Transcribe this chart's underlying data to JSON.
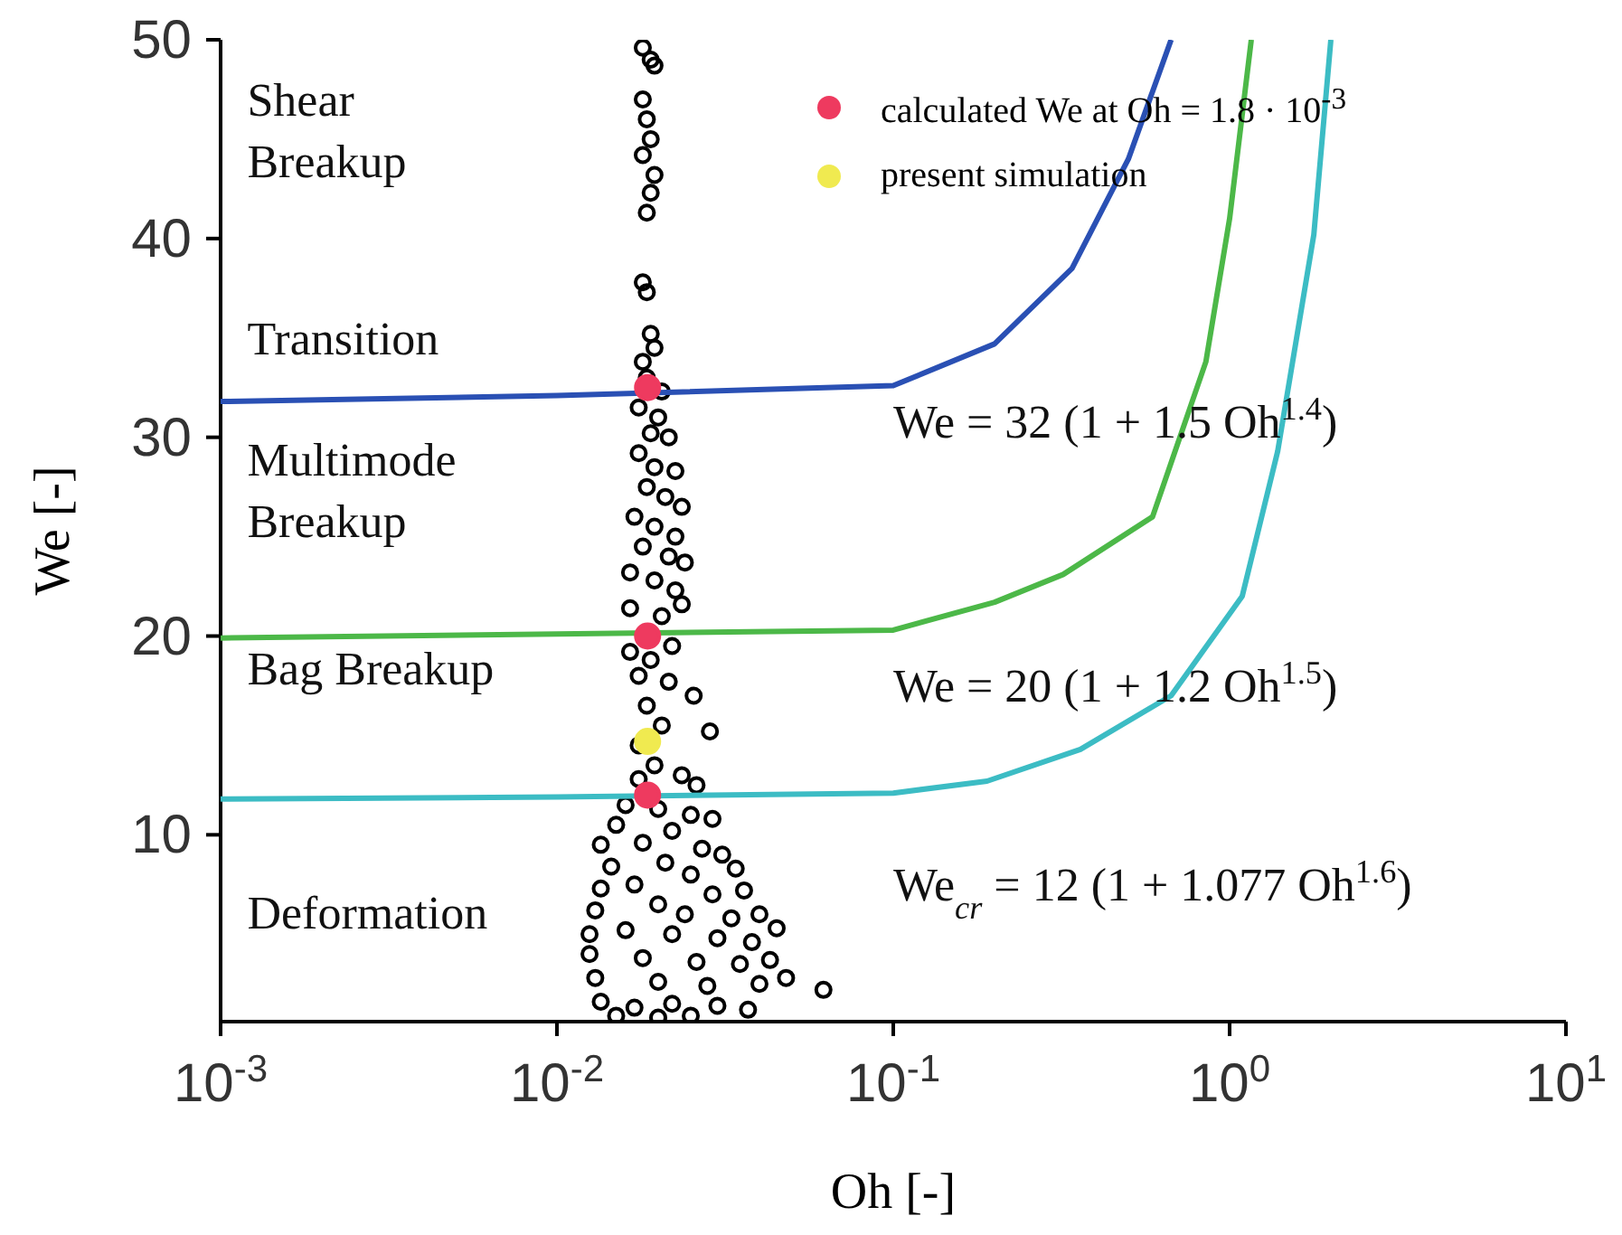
{
  "chart_data": {
    "type": "scatter",
    "xlabel": "Oh [-]",
    "ylabel": "We [-]",
    "log": "x",
    "legend": "top right",
    "marker": "circle",
    "xlim": [
      0.001,
      10
    ],
    "xticks": [
      {
        "value": 0.001,
        "label": "10$^{-3}$"
      },
      {
        "value": 0.01,
        "label": "10$^{-2}$"
      },
      {
        "value": 0.1,
        "label": "10$^{-1}$"
      },
      {
        "value": 1,
        "label": "10$^{0}$"
      },
      {
        "value": 10,
        "label": "10$^{1}$"
      }
    ],
    "ylim": [
      0.6,
      50
    ],
    "yticks": [
      10,
      20,
      30,
      40,
      50
    ],
    "series": [
      {
        "color": "#000000",
        "x": [
          0.018,
          0.019,
          0.0195,
          0.018,
          0.0185,
          0.019,
          0.018,
          0.0195,
          0.019,
          0.0185,
          0.018,
          0.0185,
          0.019,
          0.0195,
          0.018,
          0.0185,
          0.0205,
          0.0175,
          0.02,
          0.019,
          0.0215,
          0.0175,
          0.0195,
          0.0225,
          0.0185,
          0.021,
          0.0235,
          0.017,
          0.0195,
          0.0225,
          0.018,
          0.0215,
          0.024,
          0.0165,
          0.0195,
          0.0225,
          0.0165,
          0.0205,
          0.0235,
          0.0165,
          0.019,
          0.022,
          0.0175,
          0.0215,
          0.0255,
          0.0185,
          0.0205,
          0.0175,
          0.0285,
          0.0195,
          0.0235,
          0.0175,
          0.026,
          0.016,
          0.02,
          0.025,
          0.029,
          0.015,
          0.022,
          0.0135,
          0.018,
          0.027,
          0.031,
          0.0145,
          0.021,
          0.025,
          0.034,
          0.0135,
          0.017,
          0.029,
          0.036,
          0.013,
          0.02,
          0.024,
          0.033,
          0.04,
          0.0125,
          0.016,
          0.022,
          0.03,
          0.038,
          0.045,
          0.0125,
          0.018,
          0.026,
          0.035,
          0.043,
          0.013,
          0.02,
          0.028,
          0.04,
          0.048,
          0.062,
          0.0135,
          0.017,
          0.022,
          0.03,
          0.037,
          0.015,
          0.02,
          0.025
        ],
        "values": [
          49.6,
          49,
          48.7,
          47,
          46,
          45,
          44.2,
          43.2,
          42.3,
          41.3,
          37.8,
          37.3,
          35.2,
          34.5,
          33.8,
          33,
          32.3,
          31.5,
          31,
          30.2,
          30,
          29.2,
          28.5,
          28.3,
          27.5,
          27,
          26.5,
          26,
          25.5,
          25,
          24.5,
          24,
          23.7,
          23.2,
          22.8,
          22.3,
          21.4,
          21,
          21.6,
          19.2,
          18.8,
          19.5,
          18,
          17.7,
          17,
          16.5,
          15.5,
          14.5,
          15.2,
          13.5,
          13,
          12.8,
          12.5,
          11.5,
          11.3,
          11,
          10.8,
          10.5,
          10.2,
          9.5,
          9.6,
          9.3,
          9,
          8.4,
          8.6,
          8,
          8.3,
          7.3,
          7.5,
          7,
          7.2,
          6.2,
          6.5,
          6,
          5.8,
          6,
          5,
          5.2,
          5,
          4.8,
          4.6,
          5.3,
          4,
          3.8,
          3.6,
          3.5,
          3.7,
          2.8,
          2.6,
          2.4,
          2.5,
          2.8,
          2.2,
          1.6,
          1.3,
          1.5,
          1.4,
          1.2,
          0.9,
          0.8,
          0.9
        ]
      },
      {
        "type": "line",
        "marker": "none",
        "color": "#2a50b4",
        "x": [
          0.001,
          0.01,
          0.1,
          0.2,
          0.34,
          0.5,
          0.67
        ],
        "values": [
          31.8,
          32.1,
          32.6,
          34.7,
          38.5,
          44,
          50
        ]
      },
      {
        "type": "line",
        "marker": "none",
        "color": "#4cb848",
        "x": [
          0.001,
          0.01,
          0.1,
          0.2,
          0.32,
          0.59,
          0.85,
          1,
          1.16
        ],
        "values": [
          19.9,
          20.1,
          20.3,
          21.7,
          23.1,
          26,
          33.8,
          41,
          50
        ]
      },
      {
        "type": "line",
        "marker": "none",
        "color": "#3cbcc4",
        "x": [
          0.001,
          0.01,
          0.1,
          0.19,
          0.36,
          0.67,
          1.09,
          1.39,
          1.78,
          2
        ],
        "values": [
          11.8,
          11.9,
          12.1,
          12.7,
          14.3,
          17,
          22,
          29.3,
          40.2,
          50
        ]
      },
      {
        "type": "scatter",
        "name": "calculated We at Oh = 1.8 · 10$^{-3}$",
        "color": "#ee3a5f",
        "x": [
          0.0186,
          0.0186,
          0.0186
        ],
        "values": [
          32.5,
          20,
          12
        ]
      },
      {
        "type": "scatter",
        "name": "present simulation",
        "color": "#f0ea50",
        "x": [
          0.0186
        ],
        "values": [
          14.7
        ]
      }
    ],
    "annotations": [
      "Shear Breakup",
      "Transition",
      "Multimode Breakup",
      "Bag Breakup",
      "Deformation",
      "We = 32 (1 + 1.5 Oh$^{1.4}$)",
      "We = 20 (1 + 1.2 Oh$^{1.5}$)",
      "We$_{cr}$ = 12 (1 + 1.077 Oh$^{1.6}$)"
    ]
  }
}
